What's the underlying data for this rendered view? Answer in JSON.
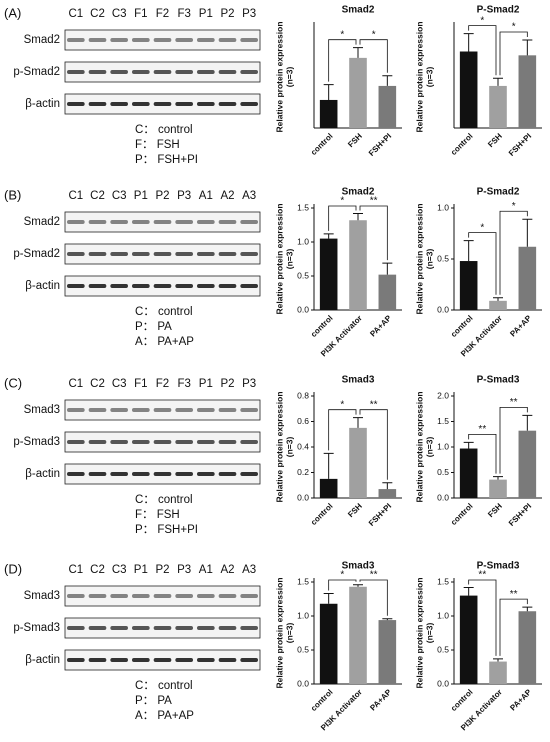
{
  "panels": [
    {
      "label": "(A)",
      "lanes": [
        "C1",
        "C2",
        "C3",
        "F1",
        "F2",
        "F3",
        "P1",
        "P2",
        "P3"
      ],
      "rows": [
        "Smad2",
        "p-Smad2",
        "β-actin"
      ],
      "legend": [
        "C： control",
        "F： FSH",
        "P： FSH+PI"
      ]
    },
    {
      "label": "(B)",
      "lanes": [
        "C1",
        "C2",
        "C3",
        "P1",
        "P2",
        "P3",
        "A1",
        "A2",
        "A3"
      ],
      "rows": [
        "Smad2",
        "p-Smad2",
        "β-actin"
      ],
      "legend": [
        "C： control",
        "P： PA",
        "A： PA+AP"
      ]
    },
    {
      "label": "(C)",
      "lanes": [
        "C1",
        "C2",
        "C3",
        "F1",
        "F2",
        "F3",
        "P1",
        "P2",
        "P3"
      ],
      "rows": [
        "Smad3",
        "p-Smad3",
        "β-actin"
      ],
      "legend": [
        "C： control",
        "F： FSH",
        "P： FSH+PI"
      ]
    },
    {
      "label": "(D)",
      "lanes": [
        "C1",
        "C2",
        "C3",
        "P1",
        "P2",
        "P3",
        "A1",
        "A2",
        "A3"
      ],
      "rows": [
        "Smad3",
        "p-Smad3",
        "β-actin"
      ],
      "legend": [
        "C： control",
        "P： PA",
        "A： PA+AP"
      ]
    }
  ],
  "chart_data": [
    {
      "type": "bar",
      "title": "Smad2",
      "ylabel": [
        "Relative protein expression",
        "(n=3)"
      ],
      "categories": [
        "control",
        "FSH",
        "FSH+PI"
      ],
      "values": [
        0.22,
        0.55,
        0.33
      ],
      "errors": [
        0.12,
        0.08,
        0.08
      ],
      "colors": [
        "#111111",
        "#a0a0a0",
        "#7a7a7a"
      ],
      "ylim": [
        0,
        0.8
      ],
      "significance": [
        {
          "bars": [
            0,
            1
          ],
          "label": "*"
        },
        {
          "bars": [
            1,
            2
          ],
          "label": "*"
        }
      ]
    },
    {
      "type": "bar",
      "title": "P-Smad2",
      "ylabel": [
        "Relative protein expression",
        "(n=3)"
      ],
      "categories": [
        "control",
        "FSH",
        "FSH+PI"
      ],
      "values": [
        0.6,
        0.33,
        0.57
      ],
      "errors": [
        0.14,
        0.06,
        0.12
      ],
      "colors": [
        "#111111",
        "#a0a0a0",
        "#7a7a7a"
      ],
      "ylim": [
        0,
        0.8
      ],
      "significance": [
        {
          "bars": [
            0,
            1
          ],
          "label": "*"
        },
        {
          "bars": [
            1,
            2
          ],
          "label": "*"
        }
      ]
    },
    {
      "type": "bar",
      "title": "Smad2",
      "ylabel": [
        "Relative protein expression",
        "(n=3)"
      ],
      "categories": [
        "control",
        "PI3K Activator",
        "PA+AP"
      ],
      "values": [
        1.05,
        1.32,
        0.52
      ],
      "errors": [
        0.07,
        0.1,
        0.17
      ],
      "colors": [
        "#111111",
        "#a0a0a0",
        "#7a7a7a"
      ],
      "ylim": [
        0,
        1.5
      ],
      "yticks": [
        {
          "value": 0,
          "label": "0.0"
        },
        0.5,
        {
          "value": 1,
          "label": "1.0"
        },
        1.5
      ],
      "significance": [
        {
          "bars": [
            0,
            1
          ],
          "label": "*"
        },
        {
          "bars": [
            1,
            2
          ],
          "label": "**"
        }
      ]
    },
    {
      "type": "bar",
      "title": "P-Smad2",
      "ylabel": [
        "Relative protein expression",
        "(n=3)"
      ],
      "categories": [
        "control",
        "PI3K Activator",
        "PA+AP"
      ],
      "values": [
        0.48,
        0.09,
        0.62
      ],
      "errors": [
        0.2,
        0.03,
        0.27
      ],
      "colors": [
        "#111111",
        "#a0a0a0",
        "#7a7a7a"
      ],
      "ylim": [
        0,
        1
      ],
      "yticks": [
        {
          "value": 0,
          "label": "0.0"
        },
        0.5,
        {
          "value": 1,
          "label": "1.0"
        }
      ],
      "significance": [
        {
          "bars": [
            0,
            1
          ],
          "label": "*"
        },
        {
          "bars": [
            1,
            2
          ],
          "label": "*"
        }
      ]
    },
    {
      "type": "bar",
      "title": "Smad3",
      "ylabel": [
        "Relative protein expression",
        "(n=3)"
      ],
      "categories": [
        "control",
        "FSH",
        "FSH+PI"
      ],
      "values": [
        0.15,
        0.55,
        0.07
      ],
      "errors": [
        0.2,
        0.08,
        0.05
      ],
      "colors": [
        "#111111",
        "#a0a0a0",
        "#7a7a7a"
      ],
      "ylim": [
        0,
        0.8
      ],
      "yticks": [
        {
          "value": 0,
          "label": "0.0"
        },
        0.2,
        0.4,
        0.6,
        0.8
      ],
      "significance": [
        {
          "bars": [
            0,
            1
          ],
          "label": "*"
        },
        {
          "bars": [
            1,
            2
          ],
          "label": "**"
        }
      ]
    },
    {
      "type": "bar",
      "title": "P-Smad3",
      "ylabel": [
        "Relative protein expression",
        "(n=3)"
      ],
      "categories": [
        "control",
        "FSH",
        "FSH+PI"
      ],
      "values": [
        0.97,
        0.36,
        1.32
      ],
      "errors": [
        0.12,
        0.06,
        0.3
      ],
      "colors": [
        "#111111",
        "#a0a0a0",
        "#7a7a7a"
      ],
      "ylim": [
        0,
        2
      ],
      "yticks": [
        {
          "value": 0,
          "label": "0.0"
        },
        0.5,
        {
          "value": 1,
          "label": "1.0"
        },
        1.5,
        {
          "value": 2,
          "label": "2.0"
        }
      ],
      "significance": [
        {
          "bars": [
            0,
            1
          ],
          "label": "**"
        },
        {
          "bars": [
            1,
            2
          ],
          "label": "**"
        }
      ]
    },
    {
      "type": "bar",
      "title": "Smad3",
      "ylabel": [
        "Relative protein expression",
        "(n=3)"
      ],
      "categories": [
        "control",
        "PI3K Activator",
        "PA+AP"
      ],
      "values": [
        1.18,
        1.43,
        0.94
      ],
      "errors": [
        0.15,
        0.03,
        0.02
      ],
      "colors": [
        "#111111",
        "#a0a0a0",
        "#7a7a7a"
      ],
      "ylim": [
        0,
        1.5
      ],
      "yticks": [
        {
          "value": 0,
          "label": "0.0"
        },
        0.5,
        {
          "value": 1,
          "label": "1.0"
        },
        1.5
      ],
      "significance": [
        {
          "bars": [
            0,
            1
          ],
          "label": "*"
        },
        {
          "bars": [
            1,
            2
          ],
          "label": "**"
        }
      ]
    },
    {
      "type": "bar",
      "title": "P-Smad3",
      "ylabel": [
        "Relative protein expression",
        "(n=3)"
      ],
      "categories": [
        "control",
        "PI3K Activator",
        "PA+AP"
      ],
      "values": [
        1.3,
        0.33,
        1.07
      ],
      "errors": [
        0.12,
        0.04,
        0.06
      ],
      "colors": [
        "#111111",
        "#a0a0a0",
        "#7a7a7a"
      ],
      "ylim": [
        0,
        1.5
      ],
      "yticks": [
        {
          "value": 0,
          "label": "0.0"
        },
        0.5,
        {
          "value": 1,
          "label": "1.0"
        },
        1.5
      ],
      "significance": [
        {
          "bars": [
            0,
            1
          ],
          "label": "**"
        },
        {
          "bars": [
            1,
            2
          ],
          "label": "**"
        }
      ]
    }
  ]
}
